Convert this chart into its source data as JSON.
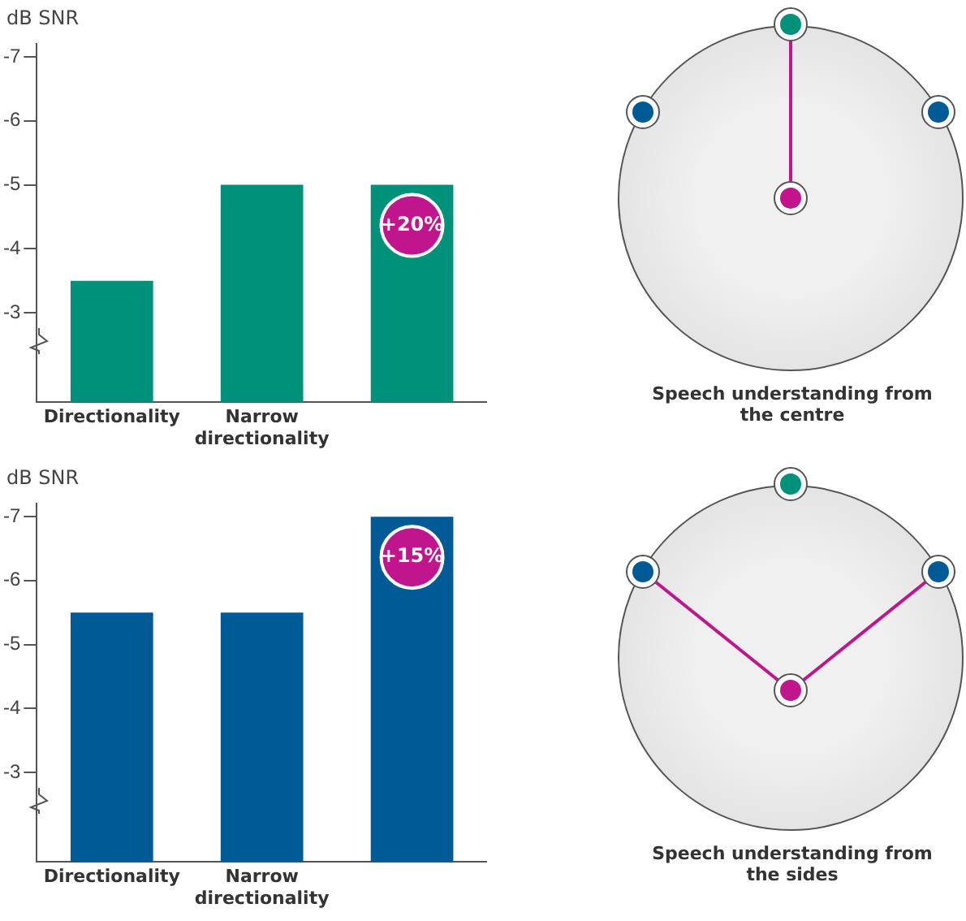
{
  "chart_data": [
    {
      "type": "bar",
      "ylabel": "dB SNR",
      "categories": [
        "Directionality",
        "Narrow directionality",
        null
      ],
      "values": [
        -3.5,
        -5,
        -5
      ],
      "color": "#00917a",
      "ylim": [
        -1.6,
        -7.2
      ],
      "yticks": [
        -3,
        -4,
        -5,
        -6,
        -7
      ],
      "grid": false,
      "legend": false,
      "annotations": [
        {
          "text": "+20%",
          "y": -5
        },
        "Speech understanding from the centre"
      ]
    },
    {
      "type": "bar",
      "ylabel": "dB SNR",
      "categories": [
        "Directionality",
        "Narrow directionality",
        null
      ],
      "values": [
        -5.5,
        -5.5,
        -7
      ],
      "color": "#005a96",
      "ylim": [
        -1.6,
        -7.2
      ],
      "yticks": [
        -3,
        -4,
        -5,
        -6,
        -7
      ],
      "grid": false,
      "legend": false,
      "annotations": [
        {
          "text": "+15%",
          "y": -7
        },
        "Speech understanding from the sides"
      ]
    }
  ]
}
